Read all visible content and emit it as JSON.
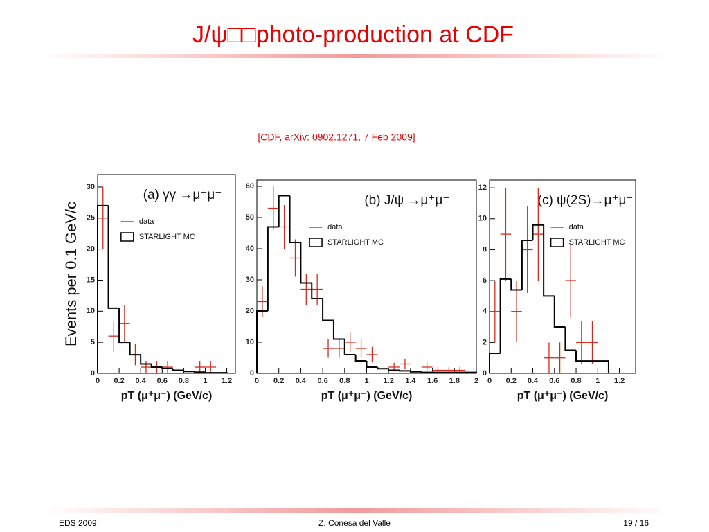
{
  "slide": {
    "title": "J/ψ□□photo-production at CDF",
    "citation": "[CDF, arXiv: 0902.1271, 7 Feb 2009]",
    "footer_left": "EDS 2009",
    "footer_center": "Z. Conesa del Valle",
    "footer_right": "19 / 16"
  },
  "chart_data": [
    {
      "type": "histogram",
      "title": "(a) γγ →μ⁺μ⁻",
      "xlabel": "pT (μ⁺μ⁻) (GeV/c)",
      "ylabel": "Events per 0.1 GeV/c",
      "xlim": [
        0,
        1.28
      ],
      "ylim": [
        0,
        32
      ],
      "xticks": [
        0,
        0.2,
        0.4,
        0.6,
        0.8,
        1,
        1.2
      ],
      "yticks": [
        0,
        5,
        10,
        15,
        20,
        25,
        30
      ],
      "legend": "upper right",
      "series": [
        {
          "name": "data",
          "color": "#d42a1e",
          "x": [
            0.05,
            0.15,
            0.25,
            0.35,
            0.45,
            0.55,
            0.65,
            0.95,
            1.05
          ],
          "values": [
            25,
            6,
            8,
            3,
            1,
            1,
            1,
            1,
            1
          ],
          "yerr": [
            5,
            2.5,
            3,
            1.7,
            1,
            1,
            1,
            1,
            1
          ],
          "xerr": 0.05
        },
        {
          "name": "STARLIGHT MC",
          "color": "#000000",
          "bins": [
            0,
            0.1,
            0.2,
            0.3,
            0.4,
            0.5,
            0.6,
            0.7,
            0.8,
            0.9,
            1.0,
            1.1,
            1.2
          ],
          "values": [
            27,
            10.5,
            5,
            3,
            1.5,
            1,
            0.8,
            0.5,
            0.3,
            0.2,
            0.1,
            0.1
          ]
        }
      ]
    },
    {
      "type": "histogram",
      "title": "(b) J/ψ →μ⁺μ⁻",
      "xlabel": "pT (μ⁺μ⁻) (GeV/c)",
      "xlim": [
        0,
        2
      ],
      "ylim": [
        0,
        62
      ],
      "xticks": [
        0,
        0.2,
        0.4,
        0.6,
        0.8,
        1,
        1.2,
        1.4,
        1.6,
        1.8,
        2
      ],
      "yticks": [
        0,
        10,
        20,
        30,
        40,
        50,
        60
      ],
      "legend": "upper right",
      "series": [
        {
          "name": "data",
          "color": "#d42a1e",
          "x": [
            0.05,
            0.15,
            0.25,
            0.35,
            0.45,
            0.55,
            0.65,
            0.75,
            0.85,
            0.95,
            1.05,
            1.25,
            1.35,
            1.55,
            1.65,
            1.75,
            1.85
          ],
          "values": [
            23,
            53,
            47,
            37,
            27,
            27,
            8,
            8,
            10,
            8,
            6,
            2,
            3,
            2,
            1,
            1,
            1
          ],
          "yerr": [
            5,
            7,
            7,
            6,
            5,
            5,
            3,
            3,
            3,
            3,
            2.5,
            1.4,
            1.7,
            1.4,
            1,
            1,
            1
          ],
          "xerr": 0.05
        },
        {
          "name": "STARLIGHT MC",
          "color": "#000000",
          "bins": [
            0,
            0.1,
            0.2,
            0.3,
            0.4,
            0.5,
            0.6,
            0.7,
            0.8,
            0.9,
            1.0,
            1.1,
            1.2,
            1.3,
            1.4,
            1.5,
            2.0
          ],
          "values": [
            20,
            47,
            57,
            42,
            29,
            24,
            17,
            11,
            6,
            4,
            2,
            1.5,
            1,
            0.8,
            0.5,
            0.3
          ]
        }
      ]
    },
    {
      "type": "histogram",
      "title": "(c) ψ(2S)→μ⁺μ⁻",
      "xlabel": "pT (μ⁺μ⁻) (GeV/c)",
      "xlim": [
        0,
        1.35
      ],
      "ylim": [
        0,
        12.5
      ],
      "xticks": [
        0,
        0.2,
        0.4,
        0.6,
        0.8,
        1,
        1.2
      ],
      "yticks": [
        0,
        2,
        4,
        6,
        8,
        10,
        12
      ],
      "legend": "upper right",
      "series": [
        {
          "name": "data",
          "color": "#d42a1e",
          "x": [
            0.05,
            0.15,
            0.25,
            0.35,
            0.45,
            0.55,
            0.65,
            0.75,
            0.85,
            0.95
          ],
          "values": [
            4,
            9,
            4,
            8,
            9,
            1,
            1,
            6,
            2,
            2
          ],
          "yerr": [
            2,
            3,
            2,
            2.8,
            3,
            1,
            1,
            2.4,
            1.4,
            1.4
          ],
          "xerr": 0.05
        },
        {
          "name": "STARLIGHT MC",
          "color": "#000000",
          "bins": [
            0,
            0.1,
            0.2,
            0.3,
            0.4,
            0.5,
            0.6,
            0.7,
            0.8,
            1.1
          ],
          "values": [
            1.3,
            6.1,
            5.4,
            8.6,
            9.6,
            5,
            3,
            1.5,
            0.8
          ]
        }
      ]
    }
  ]
}
